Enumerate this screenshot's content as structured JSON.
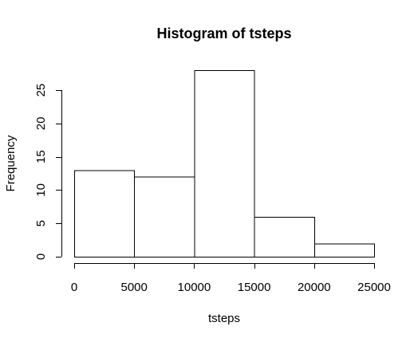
{
  "chart_data": {
    "type": "bar",
    "title": "Histogram of tsteps",
    "xlabel": "tsteps",
    "ylabel": "Frequency",
    "bins": [
      {
        "start": 0,
        "end": 5000,
        "value": 13
      },
      {
        "start": 5000,
        "end": 10000,
        "value": 12
      },
      {
        "start": 10000,
        "end": 15000,
        "value": 28
      },
      {
        "start": 15000,
        "end": 20000,
        "value": 6
      },
      {
        "start": 20000,
        "end": 25000,
        "value": 2
      }
    ],
    "xlim": [
      0,
      25000
    ],
    "ylim": [
      0,
      28
    ],
    "xticks": [
      0,
      5000,
      10000,
      15000,
      20000,
      25000
    ],
    "yticks": [
      0,
      5,
      10,
      15,
      20,
      25
    ],
    "grid": false,
    "colors": {
      "bar_fill": "#ffffff",
      "bar_stroke": "#000000",
      "axis": "#000000",
      "text": "#000000"
    }
  }
}
